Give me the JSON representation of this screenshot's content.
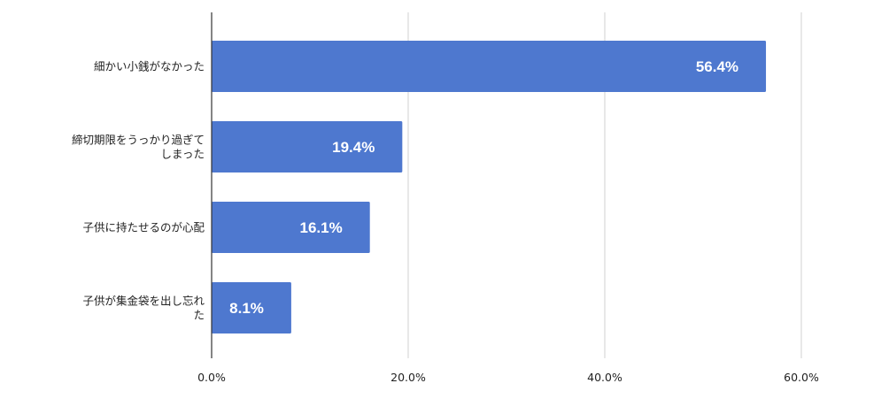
{
  "chart_data": {
    "type": "bar",
    "orientation": "horizontal",
    "title": "",
    "xlabel": "",
    "ylabel": "",
    "categories": [
      [
        "細かい小銭がなかった"
      ],
      [
        "締切期限をうっかり過ぎて",
        "しまった"
      ],
      [
        "子供に持たせるのが心配"
      ],
      [
        "子供が集金袋を出し忘れ",
        "た"
      ]
    ],
    "values": [
      56.4,
      19.4,
      16.1,
      8.1
    ],
    "data_labels": [
      "56.4%",
      "19.4%",
      "16.1%",
      "8.1%"
    ],
    "xlim": [
      0,
      60
    ],
    "ticks": [
      0,
      20,
      40,
      60
    ],
    "tick_labels": [
      "0.0%",
      "20.0%",
      "40.0%",
      "60.0%"
    ],
    "grid": true,
    "legend": "none",
    "colors": {
      "bar": "#4e78cf",
      "grid": "#d0d0d0",
      "axis": "#333333",
      "text": "#222222",
      "data_label": "#ffffff"
    }
  }
}
